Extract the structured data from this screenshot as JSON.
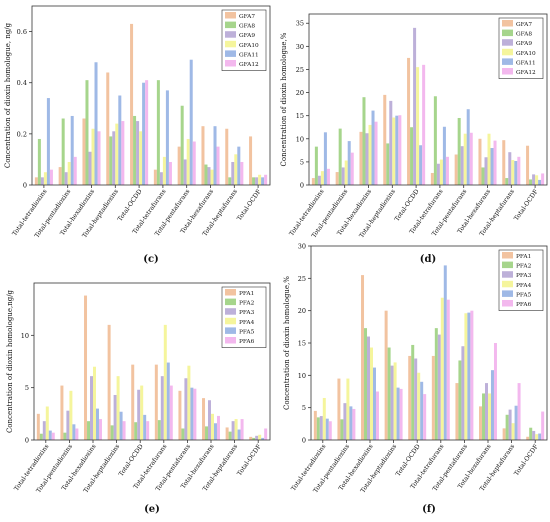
{
  "chart_data": [
    {
      "panel": "(c)",
      "type": "bar",
      "ylabel": "Concentration of dioxin homologue, ng/g",
      "ylim": [
        0,
        0.7
      ],
      "yticks": [
        0,
        0.2,
        0.4,
        0.6
      ],
      "ytick_labels": [
        "0",
        "0.2",
        "0.4",
        "0.6"
      ],
      "grid": false,
      "legend": "top-right",
      "categories": [
        "Total-tetradioxins",
        "Total-pentadioxins",
        "Total-hexadioxins",
        "Total-heptadioxins",
        "Total-OCDD",
        "Total-tetrafurans",
        "Total-pentafurans",
        "Total-hexafurans",
        "Total-heptafurans",
        "Total-OCDF"
      ],
      "series": [
        {
          "name": "GFA7",
          "color": "#f2c3a0",
          "values": [
            0.03,
            0.07,
            0.26,
            0.44,
            0.63,
            0.06,
            0.15,
            0.23,
            0.22,
            0.19
          ]
        },
        {
          "name": "GFA8",
          "color": "#a6d58c",
          "values": [
            0.18,
            0.26,
            0.41,
            0.19,
            0.27,
            0.41,
            0.31,
            0.08,
            0.03,
            0.03
          ]
        },
        {
          "name": "GFA9",
          "color": "#bdb0d9",
          "values": [
            0.03,
            0.05,
            0.13,
            0.21,
            0.25,
            0.05,
            0.1,
            0.07,
            0.09,
            0.03
          ]
        },
        {
          "name": "GFA10",
          "color": "#f5f59c",
          "values": [
            0.05,
            0.09,
            0.22,
            0.24,
            0.21,
            0.11,
            0.18,
            0.06,
            0.12,
            0.04
          ]
        },
        {
          "name": "GFA11",
          "color": "#9fb9e6",
          "values": [
            0.34,
            0.27,
            0.48,
            0.35,
            0.4,
            0.37,
            0.49,
            0.23,
            0.15,
            0.03
          ]
        },
        {
          "name": "GFA12",
          "color": "#f3b8ee",
          "values": [
            0.06,
            0.11,
            0.21,
            0.25,
            0.41,
            0.09,
            0.17,
            0.15,
            0.09,
            0.04
          ]
        }
      ]
    },
    {
      "panel": "(d)",
      "type": "bar",
      "ylabel": "Concentration of dioxin homologue,%",
      "ylim": [
        0,
        37
      ],
      "yticks": [
        0,
        5,
        10,
        15,
        20,
        25,
        30,
        35
      ],
      "ytick_labels": [
        "0",
        "5",
        "10",
        "15",
        "20",
        "25",
        "30",
        "35"
      ],
      "grid": false,
      "legend": "top-right",
      "categories": [
        "Total-tetradioxins",
        "Total-pentadioxins",
        "Total-hexadioxins",
        "Total-heptadioxins",
        "Total-OCDD",
        "Total-tetrafurans",
        "Total-pentafurans",
        "Total-hexafurans",
        "Total-heptafurans",
        "Total-OCDF"
      ],
      "series": [
        {
          "name": "GFA7",
          "color": "#f2c3a0",
          "values": [
            1.5,
            2.8,
            11.5,
            19.5,
            27.5,
            2.6,
            6.6,
            10,
            9.7,
            8.5
          ]
        },
        {
          "name": "GFA8",
          "color": "#a6d58c",
          "values": [
            8.3,
            12.2,
            19,
            9,
            12.5,
            19.2,
            14.5,
            3.8,
            1.5,
            1.2
          ]
        },
        {
          "name": "GFA9",
          "color": "#bdb0d9",
          "values": [
            2,
            3.8,
            11.2,
            18.2,
            34,
            4.6,
            8.4,
            6,
            7.1,
            2.3
          ]
        },
        {
          "name": "GFA10",
          "color": "#f5f59c",
          "values": [
            3,
            5.3,
            13,
            14.6,
            25.5,
            5.5,
            11.1,
            11.1,
            5.4,
            2.1
          ]
        },
        {
          "name": "GFA11",
          "color": "#9fb9e6",
          "values": [
            11.4,
            9.5,
            16.1,
            15,
            8.6,
            12.6,
            16.4,
            8,
            5.2,
            1.1
          ]
        },
        {
          "name": "GFA12",
          "color": "#f3b8ee",
          "values": [
            3.5,
            7,
            13.7,
            15.1,
            26,
            6.1,
            11.3,
            9.6,
            6.1,
            2.5
          ]
        }
      ]
    },
    {
      "panel": "(e)",
      "type": "bar",
      "ylabel": "Concentration of dioxin homologue,ng/g",
      "ylim": [
        0,
        15
      ],
      "yticks": [
        0,
        5,
        10
      ],
      "ytick_labels": [
        "0",
        "5",
        "10"
      ],
      "grid": false,
      "legend": "top-right",
      "categories": [
        "Total-tetradioxins",
        "Total-pentadioxins",
        "Total-hexadioxins",
        "Total-heptadioxins",
        "Total-OCDD",
        "Total-tetrafurans",
        "Total-pentafurans",
        "Total-hexafurans",
        "Total-heptafurans",
        "Total-OCDF"
      ],
      "series": [
        {
          "name": "PFA1",
          "color": "#f2c3a0",
          "values": [
            2.5,
            5.2,
            13.8,
            11,
            7.2,
            7.2,
            4.7,
            4,
            1.2,
            0.3
          ]
        },
        {
          "name": "PFA2",
          "color": "#a6d58c",
          "values": [
            0.6,
            0.7,
            1.8,
            1.4,
            1.7,
            1.9,
            1.1,
            1.3,
            0.8,
            0.2
          ]
        },
        {
          "name": "PFA3",
          "color": "#bdb0d9",
          "values": [
            1.8,
            2.8,
            6.1,
            4.3,
            4.8,
            6.1,
            5.9,
            3.8,
            1.8,
            0.4
          ]
        },
        {
          "name": "PFA4",
          "color": "#f5f59c",
          "values": [
            3.2,
            4.7,
            7,
            6.1,
            5.2,
            11,
            7.1,
            2.5,
            2,
            0.5
          ]
        },
        {
          "name": "PFA5",
          "color": "#9fb9e6",
          "values": [
            0.9,
            1.5,
            3,
            2.7,
            2.4,
            7.4,
            5,
            1.6,
            1,
            0.2
          ]
        },
        {
          "name": "PFA6",
          "color": "#f3b8ee",
          "values": [
            0.7,
            1.1,
            2,
            1.8,
            1.8,
            5.2,
            4.9,
            2.3,
            2,
            1.1
          ]
        }
      ]
    },
    {
      "panel": "(f)",
      "type": "bar",
      "ylabel": "Concentration of dioxin homologue,%",
      "ylim": [
        0,
        30
      ],
      "yticks": [
        0,
        5,
        10,
        15,
        20,
        25,
        30
      ],
      "ytick_labels": [
        "0",
        "5",
        "10",
        "15",
        "20",
        "25",
        "30"
      ],
      "grid": false,
      "legend": "top-right",
      "categories": [
        "Total-tetradioxins",
        "Total-pentadioxins",
        "Total-hexadioxins",
        "Total-heptadioxins",
        "Total-OCDD",
        "Total-tetrafurans",
        "Total-pentafurans",
        "Total-hexafurans",
        "Total-heptafurans",
        "Total-OCDF"
      ],
      "series": [
        {
          "name": "PFA1",
          "color": "#f2c3a0",
          "values": [
            4.5,
            9.5,
            25.5,
            20,
            13,
            13,
            8.8,
            5.2,
            1.8,
            0.5
          ]
        },
        {
          "name": "PFA2",
          "color": "#a6d58c",
          "values": [
            3.5,
            3.2,
            17.3,
            14.3,
            14.7,
            17.3,
            12.3,
            7.2,
            3.9,
            1.9
          ]
        },
        {
          "name": "PFA3",
          "color": "#bdb0d9",
          "values": [
            3.7,
            5.7,
            16,
            11.5,
            12.6,
            16.3,
            14.5,
            8.8,
            4.7,
            1.4
          ]
        },
        {
          "name": "PFA4",
          "color": "#f5f59c",
          "values": [
            6.5,
            9.5,
            14.3,
            12,
            10.4,
            22,
            19.6,
            7.2,
            2.6,
            0.9
          ]
        },
        {
          "name": "PFA5",
          "color": "#9fb9e6",
          "values": [
            3.3,
            5.2,
            11.2,
            8.1,
            9,
            27,
            19.7,
            10.8,
            5.3,
            1
          ]
        },
        {
          "name": "PFA6",
          "color": "#f3b8ee",
          "values": [
            2.9,
            4.8,
            7.5,
            7.9,
            7.1,
            21.7,
            20,
            15,
            8.8,
            4.4
          ]
        }
      ]
    }
  ]
}
